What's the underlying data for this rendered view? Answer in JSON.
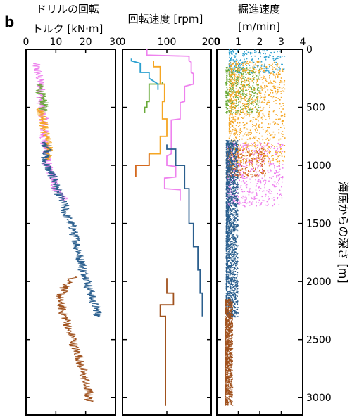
{
  "panel_label": "b",
  "chart_data": [
    {
      "type": "line",
      "title": "ドリルの回転トルク [kN·m]",
      "title_lines": [
        "ドリルの回転",
        "トルク [kN·m]"
      ],
      "xlim": [
        0,
        30
      ],
      "x_ticks": [
        0,
        10,
        20,
        30
      ],
      "ylim": [
        3150,
        0
      ],
      "y_ticks": [
        0,
        500,
        1000,
        1500,
        2000,
        2500,
        3000
      ],
      "series": [
        {
          "color": "#ee82ee",
          "depth": [
            120,
            200,
            300,
            400,
            500,
            600,
            700,
            800,
            900,
            1000,
            1100,
            1200,
            1250,
            1300
          ],
          "values": [
            3,
            4,
            5,
            5,
            5,
            6,
            6,
            6,
            7,
            7,
            9,
            10,
            12,
            13
          ]
        },
        {
          "color": "#6aaa3a",
          "depth": [
            300,
            350,
            400,
            450,
            500,
            550
          ],
          "values": [
            4,
            5,
            5,
            6,
            6,
            6
          ]
        },
        {
          "color": "#f5a623",
          "depth": [
            500,
            550,
            600,
            650,
            700,
            750,
            800,
            850,
            900,
            950
          ],
          "values": [
            5,
            5,
            6,
            6,
            6,
            7,
            7,
            8,
            7,
            8
          ]
        },
        {
          "color": "#2b5f8e",
          "depth": [
            800,
            850,
            900,
            950,
            1000,
            1050,
            1100,
            1150,
            1200,
            1250,
            1300,
            1350,
            1400,
            1450,
            1500,
            1550,
            1600,
            1650,
            1700,
            1750,
            1800,
            1850,
            1900,
            1950,
            2000,
            2050,
            2100,
            2150,
            2200,
            2250,
            2300
          ],
          "values": [
            5,
            8,
            7,
            6,
            7,
            8,
            9,
            10,
            10,
            11,
            12,
            13,
            13,
            14,
            15,
            16,
            16,
            17,
            17,
            18,
            18,
            19,
            19,
            20,
            21,
            21,
            22,
            22,
            23,
            24,
            24
          ]
        },
        {
          "color": "#a0521e",
          "depth": [
            1960,
            2000,
            2050,
            2100,
            2150,
            2200,
            2250,
            2300,
            2350,
            2400,
            2450,
            2500,
            2550,
            2600,
            2650,
            2700,
            2750,
            2800,
            2850,
            2900,
            2950,
            3000,
            3040
          ],
          "values": [
            16,
            15,
            13,
            12,
            11,
            12,
            12,
            13,
            14,
            14,
            15,
            16,
            16,
            17,
            18,
            18,
            19,
            19,
            20,
            20,
            21,
            21,
            21
          ]
        }
      ]
    },
    {
      "type": "line",
      "title": "回転速度 [rpm]",
      "title_lines": [
        "回転速度 [rpm]"
      ],
      "xlim": [
        0,
        200
      ],
      "x_ticks": [
        0,
        100,
        200
      ],
      "ylim": [
        3150,
        0
      ],
      "y_ticks": [
        0,
        500,
        1000,
        1500,
        2000,
        2500,
        3000
      ],
      "series": [
        {
          "color": "#ee82ee",
          "depth": [
            0,
            50,
            60,
            100,
            110,
            200,
            210,
            300,
            320,
            450,
            460,
            600,
            610,
            900,
            920,
            1000,
            1010,
            1100,
            1110,
            1200,
            1210,
            1300
          ],
          "values": [
            55,
            55,
            150,
            150,
            155,
            155,
            160,
            160,
            140,
            140,
            130,
            130,
            110,
            110,
            100,
            100,
            120,
            120,
            95,
            95,
            130,
            130
          ]
        },
        {
          "color": "#6aaa3a",
          "depth": [
            280,
            300,
            300,
            450,
            450,
            500,
            500,
            550
          ],
          "values": [
            90,
            90,
            60,
            60,
            55,
            55,
            50,
            50
          ]
        },
        {
          "color": "#2ba0d0",
          "depth": [
            80,
            100,
            120,
            200,
            200,
            250,
            300,
            350
          ],
          "values": [
            20,
            20,
            40,
            40,
            60,
            60,
            80,
            80
          ]
        },
        {
          "color": "#f5a623",
          "depth": [
            100,
            150,
            150,
            300,
            300,
            450,
            450,
            600,
            600,
            750,
            750,
            900,
            900,
            1000
          ],
          "values": [
            70,
            70,
            85,
            85,
            95,
            95,
            90,
            90,
            100,
            100,
            85,
            85,
            60,
            60
          ]
        },
        {
          "color": "#d4691e",
          "depth": [
            900,
            1000,
            1000,
            1100
          ],
          "values": [
            60,
            60,
            30,
            30
          ]
        },
        {
          "color": "#2b5f8e",
          "depth": [
            820,
            860,
            860,
            1000,
            1000,
            1200,
            1200,
            1500,
            1500,
            1700,
            1700,
            1900,
            1900,
            2100,
            2100,
            2300
          ],
          "values": [
            100,
            100,
            120,
            120,
            140,
            140,
            150,
            150,
            160,
            160,
            170,
            170,
            175,
            175,
            180,
            180
          ]
        },
        {
          "color": "#a0521e",
          "depth": [
            1970,
            2100,
            2100,
            2200,
            2200,
            2300,
            2300,
            3070
          ],
          "values": [
            100,
            100,
            115,
            115,
            85,
            85,
            97,
            97
          ]
        }
      ]
    },
    {
      "type": "scatter",
      "title": "掘進速度 [m/min]",
      "title_lines": [
        "掘進速度",
        "[m/min]"
      ],
      "xlim": [
        0,
        4
      ],
      "x_ticks": [
        0,
        1,
        2,
        3,
        4
      ],
      "ylim": [
        3150,
        0
      ],
      "y_ticks": [
        0,
        500,
        1000,
        1500,
        2000,
        2500,
        3000
      ],
      "y_label": "海底からの深さ [m]",
      "series": [
        {
          "color": "#2ba0d0",
          "depth_range": [
            0,
            200
          ],
          "mean": 1.2,
          "spread": 2.6
        },
        {
          "color": "#6aaa3a",
          "depth_range": [
            150,
            550
          ],
          "mean": 0.8,
          "spread": 1.6
        },
        {
          "color": "#f5a623",
          "depth_range": [
            100,
            1000
          ],
          "mean": 1.2,
          "spread": 2.6
        },
        {
          "color": "#ee82ee",
          "depth_range": [
            800,
            1350
          ],
          "mean": 1.1,
          "spread": 2.6
        },
        {
          "color": "#d4691e",
          "depth_range": [
            850,
            1100
          ],
          "mean": 0.9,
          "spread": 1.8
        },
        {
          "color": "#2b5f8e",
          "depth_range": [
            780,
            2300
          ],
          "mean": 0.55,
          "spread": 0.55
        },
        {
          "color": "#a0521e",
          "depth_range": [
            2150,
            3060
          ],
          "mean": 0.45,
          "spread": 0.35
        }
      ]
    }
  ]
}
